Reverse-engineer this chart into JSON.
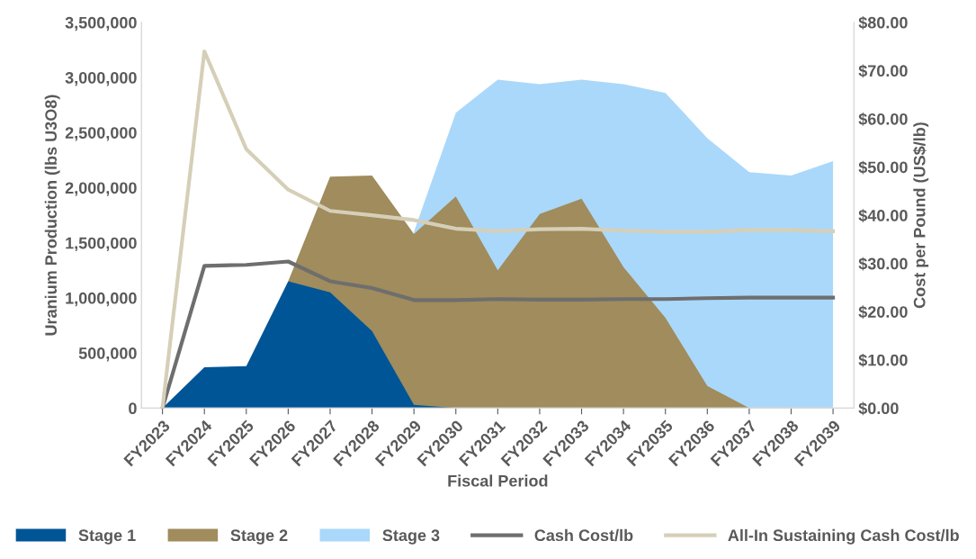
{
  "chart_data": {
    "type": "area",
    "xlabel": "Fiscal Period",
    "ylabel": "Uranium Production (lbs U3O8)",
    "y2label": "Cost per Pound (US$/lb)",
    "categories": [
      "FY2023",
      "FY2024",
      "FY2025",
      "FY2026",
      "FY2027",
      "FY2028",
      "FY2029",
      "FY2030",
      "FY2031",
      "FY2032",
      "FY2033",
      "FY2034",
      "FY2035",
      "FY2036",
      "FY2037",
      "FY2038",
      "FY2039"
    ],
    "series": [
      {
        "name": "Stage 3",
        "color": "#aad8fa",
        "values": [
          0,
          0,
          0,
          0,
          0,
          0,
          1600000,
          2680000,
          2980000,
          2940000,
          2980000,
          2940000,
          2860000,
          2450000,
          2140000,
          2110000,
          2240000
        ]
      },
      {
        "name": "Stage 2",
        "color": "#a08c5c",
        "values": [
          0,
          0,
          0,
          1150000,
          2100000,
          2110000,
          1580000,
          1920000,
          1250000,
          1760000,
          1900000,
          1280000,
          820000,
          200000,
          0,
          0,
          0
        ]
      },
      {
        "name": "Stage 1",
        "color": "#005596",
        "values": [
          0,
          370000,
          380000,
          1150000,
          1050000,
          700000,
          30000,
          0,
          0,
          0,
          0,
          0,
          0,
          0,
          0,
          0,
          0
        ]
      },
      {
        "name": "Cash Cost/lb",
        "type": "line",
        "axis": "y2",
        "color": "#6e6e6e",
        "values": [
          0,
          29.5,
          29.7,
          30.4,
          26.3,
          24.9,
          22.4,
          22.4,
          22.6,
          22.5,
          22.5,
          22.6,
          22.6,
          22.8,
          22.9,
          22.9,
          22.9
        ]
      },
      {
        "name": "All-In Sustaining Cash Cost/lb",
        "type": "line",
        "axis": "y2",
        "color": "#d6cfb8",
        "values": [
          0,
          74.0,
          53.7,
          45.3,
          40.9,
          40.0,
          39.0,
          37.2,
          36.7,
          37.1,
          37.2,
          36.8,
          36.6,
          36.6,
          36.9,
          36.9,
          36.7
        ]
      }
    ],
    "ylim": [
      0,
      3500000
    ],
    "yticks": [
      {
        "value": 0,
        "label": "0"
      },
      {
        "value": 500000,
        "label": "500,000"
      },
      {
        "value": 1000000,
        "label": "1,000,000"
      },
      {
        "value": 1500000,
        "label": "1,500,000"
      },
      {
        "value": 2000000,
        "label": "2,000,000"
      },
      {
        "value": 2500000,
        "label": "2,500,000"
      },
      {
        "value": 3000000,
        "label": "3,000,000"
      },
      {
        "value": 3500000,
        "label": "3,500,000"
      }
    ],
    "y2lim": [
      0,
      80
    ],
    "y2ticks": [
      {
        "value": 0,
        "label": "$0.00"
      },
      {
        "value": 10,
        "label": "$10.00"
      },
      {
        "value": 20,
        "label": "$20.00"
      },
      {
        "value": 30,
        "label": "$30.00"
      },
      {
        "value": 40,
        "label": "$40.00"
      },
      {
        "value": 50,
        "label": "$50.00"
      },
      {
        "value": 60,
        "label": "$60.00"
      },
      {
        "value": 70,
        "label": "$70.00"
      },
      {
        "value": 80,
        "label": "$80.00"
      }
    ],
    "legend": "bottom",
    "grid": false
  }
}
